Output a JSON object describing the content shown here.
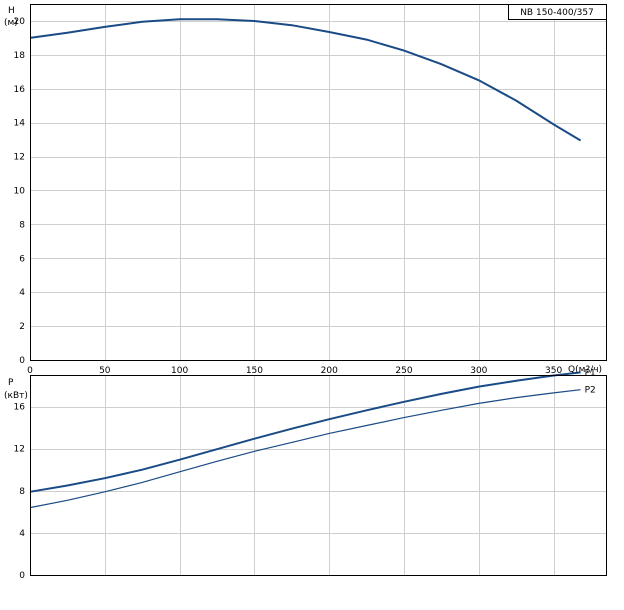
{
  "title_box": "NB 150-400/357",
  "colors": {
    "curve": "#1a4b86",
    "grid": "#cfcfcf",
    "frame": "#000000"
  },
  "chart_data": [
    {
      "type": "line",
      "ylabel_top": "H",
      "ylabel_unit": "(м)",
      "xlabel": "Q(м?/ч)",
      "xlim": [
        0,
        385
      ],
      "ylim": [
        0,
        21
      ],
      "x_ticks": [
        0,
        50,
        100,
        150,
        200,
        250,
        300,
        350
      ],
      "y_ticks": [
        0,
        2,
        4,
        6,
        8,
        10,
        12,
        14,
        16,
        18,
        20
      ],
      "grid": true,
      "series": [
        {
          "x": [
            0,
            25,
            50,
            75,
            100,
            125,
            150,
            175,
            200,
            225,
            250,
            275,
            300,
            325,
            350,
            368
          ],
          "y": [
            19.0,
            19.3,
            19.65,
            19.95,
            20.1,
            20.1,
            20.0,
            19.75,
            19.35,
            18.9,
            18.25,
            17.45,
            16.5,
            15.3,
            13.9,
            12.95
          ]
        }
      ]
    },
    {
      "type": "line",
      "ylabel_top": "P",
      "ylabel_unit": "(кВт)",
      "xlim": [
        0,
        385
      ],
      "ylim": [
        0,
        19
      ],
      "y_ticks": [
        0,
        4,
        8,
        12,
        16
      ],
      "grid": true,
      "series": [
        {
          "name": "P1",
          "x": [
            0,
            25,
            50,
            75,
            100,
            125,
            150,
            175,
            200,
            225,
            250,
            275,
            300,
            325,
            350,
            368
          ],
          "y": [
            7.9,
            8.5,
            9.2,
            10.0,
            10.95,
            11.95,
            12.95,
            13.9,
            14.8,
            15.65,
            16.45,
            17.2,
            17.9,
            18.45,
            18.95,
            19.25
          ]
        },
        {
          "name": "P2",
          "x": [
            0,
            25,
            50,
            75,
            100,
            125,
            150,
            175,
            200,
            225,
            250,
            275,
            300,
            325,
            350,
            368
          ],
          "y": [
            6.4,
            7.1,
            7.9,
            8.8,
            9.8,
            10.8,
            11.75,
            12.6,
            13.45,
            14.2,
            14.95,
            15.65,
            16.3,
            16.85,
            17.3,
            17.6
          ]
        }
      ]
    }
  ]
}
